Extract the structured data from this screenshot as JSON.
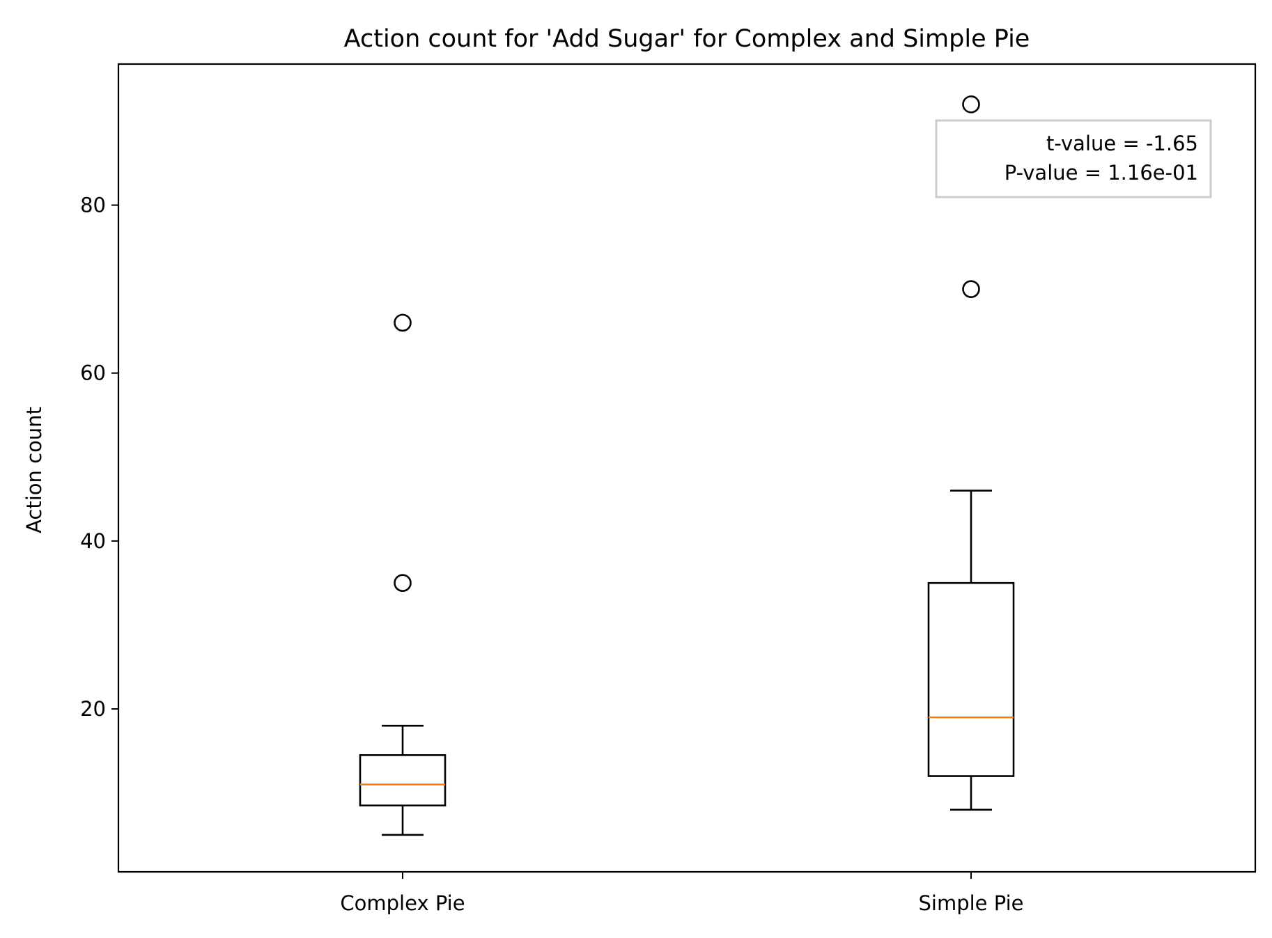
{
  "chart_data": {
    "type": "box",
    "title": "Action count for 'Add Sugar' for Complex and Simple Pie",
    "xlabel": "",
    "ylabel": "Action count",
    "ylim": [
      0.6,
      96.8
    ],
    "yticks": [
      20,
      40,
      60,
      80
    ],
    "categories": [
      "Complex Pie",
      "Simple Pie"
    ],
    "boxes": [
      {
        "category": "Complex Pie",
        "whisker_low": 5,
        "q1": 8.5,
        "median": 11,
        "q3": 14.5,
        "whisker_high": 18,
        "outliers": [
          35,
          66
        ]
      },
      {
        "category": "Simple Pie",
        "whisker_low": 8,
        "q1": 12,
        "median": 19,
        "q3": 35,
        "whisker_high": 46,
        "outliers": [
          70,
          92
        ]
      }
    ],
    "annotation": [
      "t-value = -1.65",
      "P-value = 1.16e-01"
    ],
    "colors": {
      "box": "#000000",
      "median": "#ff7f0e",
      "annotation_border": "#cccccc"
    },
    "grid": false
  }
}
